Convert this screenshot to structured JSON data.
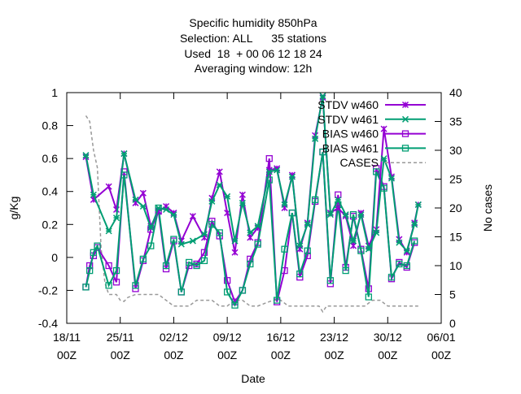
{
  "chart_data": {
    "type": "line",
    "title_lines": [
      "Specific humidity 850hPa",
      "Selection: ALL      35 stations",
      "Used  18  + 00 06 12 18 24",
      "Averaging window: 12h"
    ],
    "xlabel": "Date",
    "ylabel": "g/Kg",
    "y2label": "No cases",
    "x_unit": "days since 18/11 00Z",
    "xlim": [
      0,
      49
    ],
    "ylim": [
      -0.4,
      1.0
    ],
    "y2lim": [
      0,
      40
    ],
    "x_ticks": [
      {
        "x": 0,
        "line1": "18/11",
        "line2": "00Z"
      },
      {
        "x": 7,
        "line1": "25/11",
        "line2": "00Z"
      },
      {
        "x": 14,
        "line1": "02/12",
        "line2": "00Z"
      },
      {
        "x": 21,
        "line1": "09/12",
        "line2": "00Z"
      },
      {
        "x": 28,
        "line1": "16/12",
        "line2": "00Z"
      },
      {
        "x": 35,
        "line1": "23/12",
        "line2": "00Z"
      },
      {
        "x": 42,
        "line1": "30/12",
        "line2": "00Z"
      },
      {
        "x": 49,
        "line1": "06/01",
        "line2": "00Z"
      }
    ],
    "y_ticks": [
      "-0.4",
      "-0.2",
      "0",
      "0.2",
      "0.4",
      "0.6",
      "0.8",
      "1"
    ],
    "y_tick_values": [
      -0.4,
      -0.2,
      0,
      0.2,
      0.4,
      0.6,
      0.8,
      1.0
    ],
    "y2_ticks": [
      "0",
      "5",
      "10",
      "15",
      "20",
      "25",
      "30",
      "35",
      "40"
    ],
    "y2_tick_values": [
      0,
      5,
      10,
      15,
      20,
      25,
      30,
      35,
      40
    ],
    "legend_position": "top-right",
    "series": [
      {
        "name": "STDV w460",
        "color": "#9400d3",
        "marker": "star",
        "axis": "y",
        "points": [
          [
            2.5,
            0.61
          ],
          [
            3.5,
            0.35
          ],
          [
            5.5,
            0.43
          ],
          [
            6.5,
            0.29
          ],
          [
            7.5,
            0.63
          ],
          [
            9.0,
            0.33
          ],
          [
            10.0,
            0.39
          ],
          [
            11.0,
            0.19
          ],
          [
            12.0,
            0.28
          ],
          [
            13.0,
            0.31
          ],
          [
            14.0,
            0.27
          ],
          [
            15.0,
            0.1
          ],
          [
            16.5,
            0.25
          ],
          [
            18.0,
            0.12
          ],
          [
            19.0,
            0.36
          ],
          [
            20.0,
            0.52
          ],
          [
            21.0,
            0.27
          ],
          [
            22.0,
            0.03
          ],
          [
            23.0,
            0.38
          ],
          [
            24.0,
            0.12
          ],
          [
            25.0,
            0.18
          ],
          [
            26.5,
            0.53
          ],
          [
            27.5,
            0.54
          ],
          [
            28.5,
            0.3
          ],
          [
            29.5,
            0.5
          ],
          [
            30.5,
            0.05
          ],
          [
            31.5,
            0.21
          ],
          [
            32.5,
            0.74
          ],
          [
            33.5,
            0.97
          ],
          [
            34.5,
            0.27
          ],
          [
            35.5,
            0.3
          ],
          [
            36.5,
            0.25
          ],
          [
            37.5,
            0.07
          ],
          [
            38.5,
            0.27
          ],
          [
            39.5,
            0.07
          ],
          [
            40.5,
            0.17
          ],
          [
            41.5,
            0.78
          ],
          [
            42.5,
            0.49
          ],
          [
            43.5,
            0.11
          ],
          [
            44.5,
            0.03
          ],
          [
            45.5,
            0.21
          ],
          [
            46.0,
            0.32
          ]
        ]
      },
      {
        "name": "STDV w461",
        "color": "#009e73",
        "marker": "x-star",
        "axis": "y",
        "points": [
          [
            2.5,
            0.62
          ],
          [
            3.5,
            0.38
          ],
          [
            5.5,
            0.16
          ],
          [
            6.5,
            0.24
          ],
          [
            7.5,
            0.63
          ],
          [
            9.0,
            0.35
          ],
          [
            10.0,
            0.31
          ],
          [
            11.0,
            0.18
          ],
          [
            12.0,
            0.3
          ],
          [
            13.0,
            0.29
          ],
          [
            14.0,
            0.26
          ],
          [
            15.0,
            0.08
          ],
          [
            16.5,
            0.1
          ],
          [
            18.0,
            0.14
          ],
          [
            19.0,
            0.34
          ],
          [
            20.0,
            0.44
          ],
          [
            21.0,
            0.37
          ],
          [
            22.0,
            0.1
          ],
          [
            23.0,
            0.33
          ],
          [
            24.0,
            0.15
          ],
          [
            25.0,
            0.19
          ],
          [
            26.5,
            0.52
          ],
          [
            27.5,
            0.53
          ],
          [
            28.5,
            0.32
          ],
          [
            29.5,
            0.49
          ],
          [
            30.5,
            0.07
          ],
          [
            31.5,
            0.2
          ],
          [
            32.5,
            0.72
          ],
          [
            33.5,
            0.98
          ],
          [
            34.5,
            0.26
          ],
          [
            35.5,
            0.35
          ],
          [
            36.5,
            0.26
          ],
          [
            37.5,
            0.1
          ],
          [
            38.5,
            0.26
          ],
          [
            39.5,
            0.05
          ],
          [
            40.5,
            0.15
          ],
          [
            41.5,
            0.6
          ],
          [
            42.5,
            0.48
          ],
          [
            43.5,
            0.09
          ],
          [
            44.5,
            0.04
          ],
          [
            45.5,
            0.2
          ],
          [
            46.0,
            0.32
          ]
        ]
      },
      {
        "name": "BIAS w460",
        "color": "#9400d3",
        "marker": "square",
        "axis": "y",
        "points": [
          [
            2.5,
            -0.18
          ],
          [
            3.0,
            -0.05
          ],
          [
            3.5,
            0.01
          ],
          [
            4.0,
            0.06
          ],
          [
            5.5,
            -0.05
          ],
          [
            6.5,
            -0.15
          ],
          [
            7.5,
            0.52
          ],
          [
            9.0,
            -0.19
          ],
          [
            10.0,
            -0.02
          ],
          [
            11.0,
            0.17
          ],
          [
            12.0,
            0.28
          ],
          [
            13.0,
            -0.07
          ],
          [
            14.0,
            0.1
          ],
          [
            15.0,
            -0.21
          ],
          [
            16.0,
            -0.05
          ],
          [
            17.0,
            -0.04
          ],
          [
            18.0,
            0.03
          ],
          [
            19.0,
            0.22
          ],
          [
            20.0,
            0.13
          ],
          [
            21.0,
            -0.14
          ],
          [
            22.0,
            -0.27
          ],
          [
            23.0,
            -0.2
          ],
          [
            24.0,
            -0.01
          ],
          [
            25.0,
            0.09
          ],
          [
            26.5,
            0.6
          ],
          [
            27.5,
            -0.27
          ],
          [
            28.5,
            -0.08
          ],
          [
            29.5,
            0.27
          ],
          [
            30.5,
            -0.12
          ],
          [
            31.5,
            0.01
          ],
          [
            32.5,
            0.34
          ],
          [
            33.5,
            0.64
          ],
          [
            34.5,
            -0.16
          ],
          [
            35.5,
            0.38
          ],
          [
            36.5,
            -0.06
          ],
          [
            37.5,
            0.25
          ],
          [
            38.5,
            0.05
          ],
          [
            39.5,
            -0.19
          ],
          [
            40.5,
            0.54
          ],
          [
            41.5,
            0.43
          ],
          [
            42.5,
            -0.13
          ],
          [
            43.5,
            -0.03
          ],
          [
            44.5,
            -0.06
          ],
          [
            45.5,
            0.09
          ]
        ]
      },
      {
        "name": "BIAS w461",
        "color": "#009e73",
        "marker": "square",
        "axis": "y",
        "points": [
          [
            2.5,
            -0.18
          ],
          [
            3.0,
            -0.08
          ],
          [
            3.5,
            0.03
          ],
          [
            4.0,
            0.07
          ],
          [
            5.5,
            -0.17
          ],
          [
            6.5,
            -0.08
          ],
          [
            7.5,
            0.5
          ],
          [
            9.0,
            -0.17
          ],
          [
            10.0,
            -0.01
          ],
          [
            11.0,
            0.07
          ],
          [
            12.0,
            0.3
          ],
          [
            13.0,
            -0.05
          ],
          [
            14.0,
            0.11
          ],
          [
            15.0,
            -0.21
          ],
          [
            16.0,
            -0.03
          ],
          [
            17.0,
            -0.05
          ],
          [
            18.0,
            -0.02
          ],
          [
            19.0,
            0.2
          ],
          [
            20.0,
            0.15
          ],
          [
            21.0,
            -0.21
          ],
          [
            22.0,
            -0.29
          ],
          [
            23.0,
            -0.2
          ],
          [
            24.0,
            -0.04
          ],
          [
            25.0,
            0.08
          ],
          [
            26.5,
            0.47
          ],
          [
            27.5,
            -0.26
          ],
          [
            28.5,
            0.05
          ],
          [
            29.5,
            0.27
          ],
          [
            30.5,
            -0.1
          ],
          [
            31.5,
            0.04
          ],
          [
            32.5,
            0.35
          ],
          [
            33.5,
            0.64
          ],
          [
            34.5,
            -0.14
          ],
          [
            35.5,
            0.32
          ],
          [
            36.5,
            -0.08
          ],
          [
            37.5,
            0.26
          ],
          [
            38.5,
            0.04
          ],
          [
            39.5,
            -0.24
          ],
          [
            40.5,
            0.52
          ],
          [
            41.5,
            0.42
          ],
          [
            42.5,
            -0.12
          ],
          [
            43.5,
            -0.04
          ],
          [
            44.5,
            -0.05
          ],
          [
            45.5,
            0.1
          ]
        ]
      },
      {
        "name": "CASES",
        "color": "#999999",
        "marker": "none",
        "dashed": true,
        "axis": "y2",
        "points": [
          [
            2.5,
            36
          ],
          [
            3.0,
            35
          ],
          [
            3.5,
            30
          ],
          [
            4.0,
            27
          ],
          [
            4.5,
            13
          ],
          [
            5.0,
            7
          ],
          [
            5.5,
            5
          ],
          [
            6.0,
            5
          ],
          [
            6.5,
            5
          ],
          [
            7.0,
            4
          ],
          [
            7.5,
            3.8
          ],
          [
            8.0,
            4.5
          ],
          [
            9.0,
            5
          ],
          [
            10.0,
            5
          ],
          [
            11.0,
            5
          ],
          [
            12.0,
            5
          ],
          [
            13.0,
            4
          ],
          [
            14.0,
            3
          ],
          [
            15.0,
            3
          ],
          [
            16.0,
            3
          ],
          [
            17.0,
            4
          ],
          [
            18.0,
            4
          ],
          [
            19.0,
            4
          ],
          [
            20.0,
            3
          ],
          [
            21.0,
            3
          ],
          [
            22.0,
            4
          ],
          [
            23.0,
            4
          ],
          [
            24.0,
            3
          ],
          [
            25.0,
            3
          ],
          [
            26.0,
            3.5
          ],
          [
            27.0,
            4
          ],
          [
            28.0,
            4
          ],
          [
            29.0,
            3
          ],
          [
            30.0,
            3
          ],
          [
            31.0,
            3
          ],
          [
            32.0,
            3
          ],
          [
            33.0,
            3
          ],
          [
            33.5,
            2
          ],
          [
            34.0,
            3
          ],
          [
            35.0,
            3
          ],
          [
            36.0,
            3
          ],
          [
            37.0,
            3
          ],
          [
            38.0,
            3
          ],
          [
            39.0,
            3
          ],
          [
            40.0,
            4
          ],
          [
            41.0,
            4
          ],
          [
            42.0,
            3
          ],
          [
            43.0,
            3
          ],
          [
            44.0,
            3
          ],
          [
            45.0,
            3
          ],
          [
            46.0,
            3
          ]
        ]
      }
    ]
  }
}
